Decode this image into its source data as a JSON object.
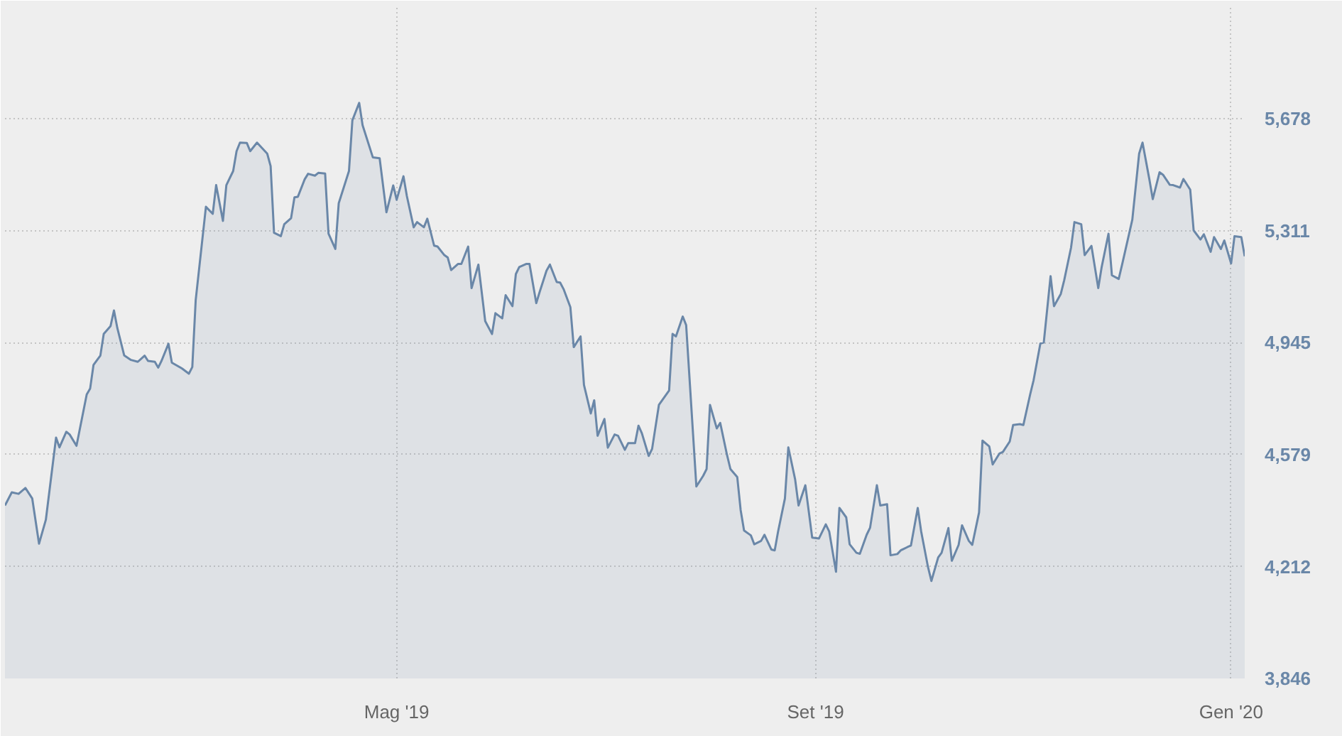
{
  "chart_data": {
    "type": "area",
    "color": "#6a87a8",
    "grid": true,
    "xlim": [
      "2019-01-06",
      "2020-01-05"
    ],
    "ylim": [
      3846,
      6040
    ],
    "xticks": [
      {
        "value": "2019-05-01",
        "label": "Mag '19"
      },
      {
        "value": "2019-09-01",
        "label": "Set '19"
      },
      {
        "value": "2020-01-01",
        "label": "Gen '20"
      }
    ],
    "yticks": [
      {
        "value": 3846,
        "label": "3,846"
      },
      {
        "value": 4212,
        "label": "4,212"
      },
      {
        "value": 4579,
        "label": "4,579"
      },
      {
        "value": 4945,
        "label": "4,945"
      },
      {
        "value": 5311,
        "label": "5,311"
      },
      {
        "value": 5678,
        "label": "5,678"
      }
    ],
    "x": [
      "2019-01-06",
      "2019-01-08",
      "2019-01-10",
      "2019-01-12",
      "2019-01-14",
      "2019-01-16",
      "2019-01-18",
      "2019-01-21",
      "2019-01-22",
      "2019-01-24",
      "2019-01-25",
      "2019-01-27",
      "2019-01-30",
      "2019-01-31",
      "2019-02-01",
      "2019-02-03",
      "2019-02-04",
      "2019-02-06",
      "2019-02-07",
      "2019-02-08",
      "2019-02-10",
      "2019-02-12",
      "2019-02-14",
      "2019-02-16",
      "2019-02-17",
      "2019-02-19",
      "2019-02-20",
      "2019-02-21",
      "2019-02-23",
      "2019-02-24",
      "2019-02-27",
      "2019-03-01",
      "2019-03-02",
      "2019-03-03",
      "2019-03-06",
      "2019-03-08",
      "2019-03-09",
      "2019-03-11",
      "2019-03-12",
      "2019-03-14",
      "2019-03-15",
      "2019-03-16",
      "2019-03-18",
      "2019-03-19",
      "2019-03-21",
      "2019-03-24",
      "2019-03-25",
      "2019-03-26",
      "2019-03-28",
      "2019-03-29",
      "2019-03-31",
      "2019-04-01",
      "2019-04-02",
      "2019-04-04",
      "2019-04-05",
      "2019-04-07",
      "2019-04-08",
      "2019-04-10",
      "2019-04-11",
      "2019-04-13",
      "2019-04-14",
      "2019-04-17",
      "2019-04-18",
      "2019-04-20",
      "2019-04-21",
      "2019-04-24",
      "2019-04-26",
      "2019-04-28",
      "2019-04-30",
      "2019-05-01",
      "2019-05-03",
      "2019-05-04",
      "2019-05-06",
      "2019-05-07",
      "2019-05-09",
      "2019-05-10",
      "2019-05-12",
      "2019-05-13",
      "2019-05-15",
      "2019-05-16",
      "2019-05-17",
      "2019-05-19",
      "2019-05-20",
      "2019-05-22",
      "2019-05-23",
      "2019-05-25",
      "2019-05-27",
      "2019-05-29",
      "2019-05-30",
      "2019-06-01",
      "2019-06-02",
      "2019-06-04",
      "2019-06-05",
      "2019-06-06",
      "2019-06-08",
      "2019-06-09",
      "2019-06-11",
      "2019-06-12",
      "2019-06-14",
      "2019-06-15",
      "2019-06-17",
      "2019-06-18",
      "2019-06-19",
      "2019-06-21",
      "2019-06-22",
      "2019-06-24",
      "2019-06-25",
      "2019-06-27",
      "2019-06-28",
      "2019-06-29",
      "2019-07-01",
      "2019-07-02",
      "2019-07-04",
      "2019-07-05",
      "2019-07-07",
      "2019-07-08",
      "2019-07-10",
      "2019-07-11",
      "2019-07-12",
      "2019-07-14",
      "2019-07-15",
      "2019-07-17",
      "2019-07-20",
      "2019-07-21",
      "2019-07-22",
      "2019-07-24",
      "2019-07-25",
      "2019-07-28",
      "2019-07-30",
      "2019-07-31",
      "2019-08-01",
      "2019-08-03",
      "2019-08-04",
      "2019-08-06",
      "2019-08-07",
      "2019-08-09",
      "2019-08-10",
      "2019-08-11",
      "2019-08-13",
      "2019-08-14",
      "2019-08-16",
      "2019-08-17",
      "2019-08-19",
      "2019-08-20",
      "2019-08-21",
      "2019-08-23",
      "2019-08-24",
      "2019-08-26",
      "2019-08-27",
      "2019-08-29",
      "2019-08-31",
      "2019-09-02",
      "2019-09-04",
      "2019-09-05",
      "2019-09-07",
      "2019-09-08",
      "2019-09-10",
      "2019-09-11",
      "2019-09-13",
      "2019-09-14",
      "2019-09-16",
      "2019-09-17",
      "2019-09-19",
      "2019-09-20",
      "2019-09-22",
      "2019-09-23",
      "2019-09-25",
      "2019-09-26",
      "2019-09-28",
      "2019-09-29",
      "2019-10-01",
      "2019-10-02",
      "2019-10-04",
      "2019-10-05",
      "2019-10-07",
      "2019-10-08",
      "2019-10-10",
      "2019-10-11",
      "2019-10-13",
      "2019-10-14",
      "2019-10-16",
      "2019-10-17",
      "2019-10-19",
      "2019-10-20",
      "2019-10-22",
      "2019-10-23",
      "2019-10-25",
      "2019-10-26",
      "2019-10-28",
      "2019-10-29",
      "2019-10-31",
      "2019-11-01",
      "2019-11-03",
      "2019-11-04",
      "2019-11-06",
      "2019-11-07",
      "2019-11-09",
      "2019-11-10",
      "2019-11-12",
      "2019-11-13",
      "2019-11-15",
      "2019-11-16",
      "2019-11-18",
      "2019-11-19",
      "2019-11-21",
      "2019-11-23",
      "2019-11-24",
      "2019-11-26",
      "2019-11-27",
      "2019-11-29",
      "2019-11-30",
      "2019-12-03",
      "2019-12-05",
      "2019-12-06",
      "2019-12-08",
      "2019-12-09",
      "2019-12-11",
      "2019-12-12",
      "2019-12-14",
      "2019-12-15",
      "2019-12-17",
      "2019-12-18",
      "2019-12-20",
      "2019-12-21",
      "2019-12-23",
      "2019-12-24",
      "2019-12-26",
      "2019-12-27",
      "2019-12-29",
      "2019-12-30",
      "2020-01-01",
      "2020-01-02",
      "2020-01-04",
      "2020-01-05"
    ],
    "values": [
      4412,
      4455,
      4450,
      4469,
      4435,
      4287,
      4365,
      4634,
      4602,
      4653,
      4644,
      4607,
      4775,
      4794,
      4872,
      4902,
      4973,
      4999,
      5050,
      4992,
      4903,
      4888,
      4882,
      4902,
      4885,
      4882,
      4863,
      4886,
      4941,
      4879,
      4860,
      4843,
      4865,
      5084,
      5389,
      5366,
      5460,
      5343,
      5460,
      5506,
      5571,
      5599,
      5598,
      5571,
      5599,
      5563,
      5522,
      5304,
      5293,
      5332,
      5352,
      5420,
      5422,
      5479,
      5497,
      5491,
      5500,
      5498,
      5301,
      5251,
      5401,
      5506,
      5672,
      5729,
      5656,
      5551,
      5548,
      5371,
      5459,
      5412,
      5489,
      5424,
      5322,
      5339,
      5322,
      5350,
      5262,
      5259,
      5231,
      5223,
      5182,
      5202,
      5202,
      5259,
      5123,
      5200,
      5015,
      4973,
      5041,
      5024,
      5100,
      5064,
      5169,
      5192,
      5202,
      5202,
      5074,
      5111,
      5180,
      5200,
      5143,
      5141,
      5120,
      5061,
      4930,
      4965,
      4806,
      4713,
      4756,
      4640,
      4695,
      4601,
      4644,
      4640,
      4594,
      4616,
      4616,
      4673,
      4648,
      4574,
      4597,
      4741,
      4788,
      4973,
      4965,
      5030,
      5002,
      4474,
      4509,
      4531,
      4741,
      4664,
      4682,
      4577,
      4531,
      4505,
      4397,
      4330,
      4314,
      4285,
      4296,
      4316,
      4268,
      4265,
      4327,
      4435,
      4602,
      4497,
      4412,
      4478,
      4307,
      4304,
      4350,
      4327,
      4195,
      4404,
      4373,
      4285,
      4257,
      4254,
      4316,
      4339,
      4478,
      4412,
      4416,
      4249,
      4253,
      4265,
      4276,
      4281,
      4404,
      4327,
      4211,
      4165,
      4242,
      4257,
      4338,
      4231,
      4283,
      4347,
      4296,
      4283,
      4389,
      4624,
      4605,
      4546,
      4582,
      4587,
      4621,
      4675,
      4678,
      4675,
      4775,
      4821,
      4942,
      4945,
      5162,
      5064,
      5104,
      5149,
      5255,
      5339,
      5332,
      5231,
      5261,
      5123,
      5192,
      5301,
      5165,
      5153,
      5200,
      5347,
      5563,
      5599,
      5479,
      5414,
      5502,
      5494,
      5461,
      5460,
      5452,
      5480,
      5445,
      5312,
      5282,
      5299,
      5242,
      5290,
      5251,
      5279,
      5204,
      5293,
      5290,
      5227
    ]
  }
}
